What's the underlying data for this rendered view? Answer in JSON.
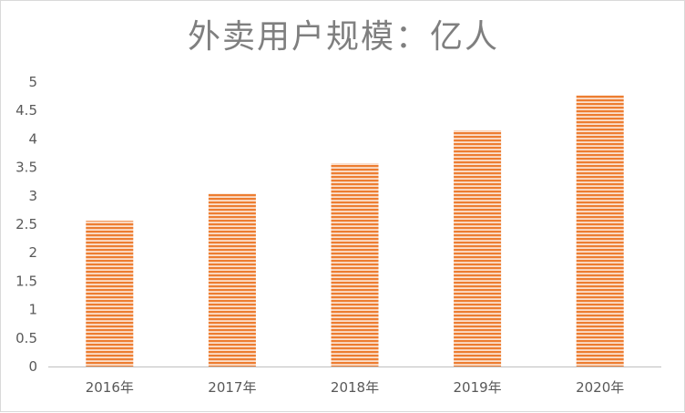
{
  "chart_data": {
    "type": "bar",
    "title": "外卖用户规模：亿人",
    "categories": [
      "2016年",
      "2017年",
      "2018年",
      "2019年",
      "2020年"
    ],
    "values": [
      2.56,
      3.04,
      3.57,
      4.15,
      4.77
    ],
    "ylim": [
      0,
      5
    ],
    "yticks": [
      "0",
      "0.5",
      "1",
      "1.5",
      "2",
      "2.5",
      "3",
      "3.5",
      "4",
      "4.5",
      "5"
    ],
    "grid": false,
    "legend": "none",
    "colors": {
      "bar": "#ed7d31",
      "bar_stripe_bg": "#fbe1cf",
      "axis": "#bfbfbf"
    }
  }
}
